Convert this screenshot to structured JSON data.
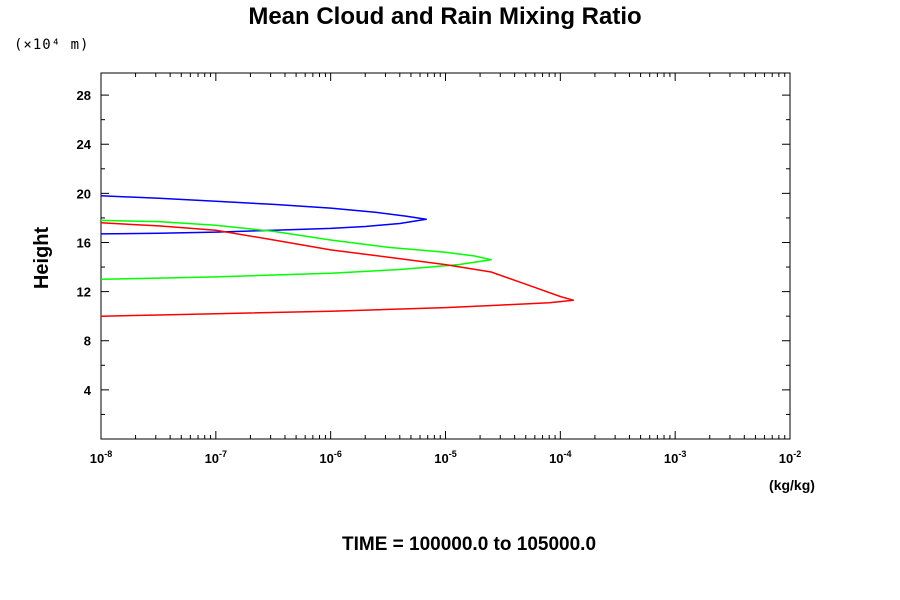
{
  "chart_data": {
    "type": "line",
    "title": "Mean Cloud and Rain Mixing Ratio",
    "y_unit_label": "(×10⁴ m)",
    "ylabel": "Height",
    "xlabel": "(kg/kg)",
    "footer": "TIME = 100000.0 to 105000.0",
    "xscale": "log",
    "xlim": [
      1e-08,
      0.01
    ],
    "ylim": [
      0,
      29.8
    ],
    "y_ticks": [
      4,
      8,
      12,
      16,
      20,
      24,
      28
    ],
    "y_tick_labels": [
      "4",
      "8",
      "12",
      "16",
      "20",
      "24",
      "28"
    ],
    "x_ticks": [
      {
        "base": "10",
        "exp": "-8"
      },
      {
        "base": "10",
        "exp": "-7"
      },
      {
        "base": "10",
        "exp": "-6"
      },
      {
        "base": "10",
        "exp": "-5"
      },
      {
        "base": "10",
        "exp": "-4"
      },
      {
        "base": "10",
        "exp": "-3"
      },
      {
        "base": "10",
        "exp": "-2"
      }
    ],
    "grid": false,
    "series": [
      {
        "color": "#0000ff",
        "points": [
          [
            1e-08,
            19.8
          ],
          [
            3.2e-08,
            19.6
          ],
          [
            1e-07,
            19.35
          ],
          [
            3.2e-07,
            19.1
          ],
          [
            1e-06,
            18.8
          ],
          [
            2.5e-06,
            18.45
          ],
          [
            4.5e-06,
            18.15
          ],
          [
            6.8e-06,
            17.9
          ],
          [
            4e-06,
            17.55
          ],
          [
            2e-06,
            17.3
          ],
          [
            1e-06,
            17.15
          ],
          [
            3.2e-07,
            17.0
          ],
          [
            1e-07,
            16.85
          ],
          [
            3.2e-08,
            16.75
          ],
          [
            1e-08,
            16.7
          ]
        ]
      },
      {
        "color": "#00ff00",
        "points": [
          [
            1e-08,
            17.8
          ],
          [
            3.2e-08,
            17.7
          ],
          [
            1e-07,
            17.4
          ],
          [
            3.2e-07,
            16.9
          ],
          [
            1e-06,
            16.2
          ],
          [
            3.2e-06,
            15.6
          ],
          [
            1e-05,
            15.2
          ],
          [
            1.8e-05,
            14.9
          ],
          [
            2.5e-05,
            14.6
          ],
          [
            1.3e-05,
            14.2
          ],
          [
            4e-06,
            13.8
          ],
          [
            1e-06,
            13.5
          ],
          [
            1e-07,
            13.2
          ],
          [
            3.2e-08,
            13.1
          ],
          [
            1e-08,
            13.0
          ]
        ]
      },
      {
        "color": "#ff0000",
        "points": [
          [
            1e-08,
            17.6
          ],
          [
            3.2e-08,
            17.35
          ],
          [
            1e-07,
            17.0
          ],
          [
            3.2e-07,
            16.2
          ],
          [
            1e-06,
            15.4
          ],
          [
            3.2e-06,
            14.8
          ],
          [
            1e-05,
            14.2
          ],
          [
            2.5e-05,
            13.6
          ],
          [
            5e-05,
            12.6
          ],
          [
            0.0001,
            11.6
          ],
          [
            0.00013,
            11.3
          ],
          [
            8e-05,
            11.1
          ],
          [
            3e-05,
            10.9
          ],
          [
            1e-05,
            10.7
          ],
          [
            1e-06,
            10.4
          ],
          [
            1e-07,
            10.2
          ],
          [
            3.2e-08,
            10.1
          ],
          [
            1e-08,
            10.0
          ]
        ]
      }
    ]
  }
}
